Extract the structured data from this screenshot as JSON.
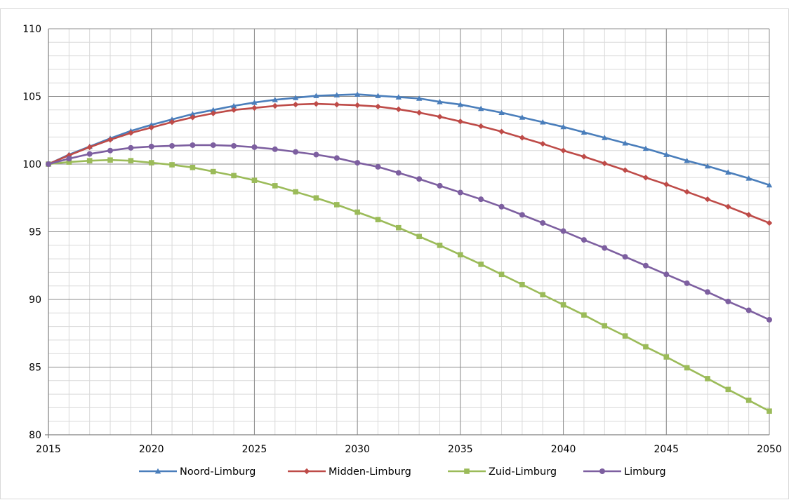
{
  "caption": "",
  "chart_data": {
    "type": "line",
    "title": "",
    "xlabel": "",
    "ylabel": "",
    "xlim": [
      2015,
      2050
    ],
    "ylim": [
      80,
      110
    ],
    "x_major_ticks": [
      2015,
      2020,
      2025,
      2030,
      2035,
      2040,
      2045,
      2050
    ],
    "y_major_ticks": [
      80,
      85,
      90,
      95,
      100,
      105,
      110
    ],
    "grid": "major and minor",
    "legend_position": "bottom",
    "x": [
      2015,
      2016,
      2017,
      2018,
      2019,
      2020,
      2021,
      2022,
      2023,
      2024,
      2025,
      2026,
      2027,
      2028,
      2029,
      2030,
      2031,
      2032,
      2033,
      2034,
      2035,
      2036,
      2037,
      2038,
      2039,
      2040,
      2041,
      2042,
      2043,
      2044,
      2045,
      2046,
      2047,
      2048,
      2049,
      2050
    ],
    "series": [
      {
        "name": "Noord-Limburg",
        "color": "#4a7ebb",
        "marker": "triangle",
        "values": [
          100.0,
          100.7,
          101.3,
          101.9,
          102.45,
          102.9,
          103.3,
          103.7,
          104.0,
          104.3,
          104.55,
          104.75,
          104.9,
          105.05,
          105.1,
          105.15,
          105.05,
          104.95,
          104.85,
          104.6,
          104.4,
          104.1,
          103.8,
          103.45,
          103.1,
          102.75,
          102.35,
          101.95,
          101.55,
          101.15,
          100.7,
          100.25,
          99.85,
          99.4,
          98.95,
          98.45
        ]
      },
      {
        "name": "Midden-Limburg",
        "color": "#be4b48",
        "marker": "diamond",
        "values": [
          100.0,
          100.65,
          101.25,
          101.8,
          102.3,
          102.7,
          103.1,
          103.45,
          103.75,
          104.0,
          104.15,
          104.3,
          104.4,
          104.45,
          104.4,
          104.35,
          104.25,
          104.05,
          103.8,
          103.5,
          103.15,
          102.8,
          102.4,
          101.95,
          101.5,
          101.0,
          100.55,
          100.05,
          99.55,
          99.0,
          98.5,
          97.95,
          97.4,
          96.85,
          96.25,
          95.65
        ]
      },
      {
        "name": "Zuid-Limburg",
        "color": "#9bbb59",
        "marker": "square",
        "values": [
          100.0,
          100.15,
          100.25,
          100.3,
          100.25,
          100.1,
          99.95,
          99.75,
          99.45,
          99.15,
          98.8,
          98.4,
          97.95,
          97.5,
          97.0,
          96.45,
          95.9,
          95.3,
          94.65,
          94.0,
          93.3,
          92.6,
          91.85,
          91.1,
          90.35,
          89.6,
          88.85,
          88.05,
          87.3,
          86.5,
          85.75,
          84.95,
          84.15,
          83.35,
          82.55,
          81.75
        ]
      },
      {
        "name": "Limburg",
        "color": "#7d5fa0",
        "marker": "circle",
        "values": [
          100.0,
          100.4,
          100.75,
          101.0,
          101.2,
          101.3,
          101.35,
          101.4,
          101.4,
          101.35,
          101.25,
          101.1,
          100.9,
          100.7,
          100.45,
          100.1,
          99.8,
          99.35,
          98.9,
          98.4,
          97.9,
          97.4,
          96.85,
          96.25,
          95.65,
          95.05,
          94.4,
          93.8,
          93.15,
          92.5,
          91.85,
          91.2,
          90.55,
          89.85,
          89.2,
          88.5
        ]
      }
    ]
  }
}
